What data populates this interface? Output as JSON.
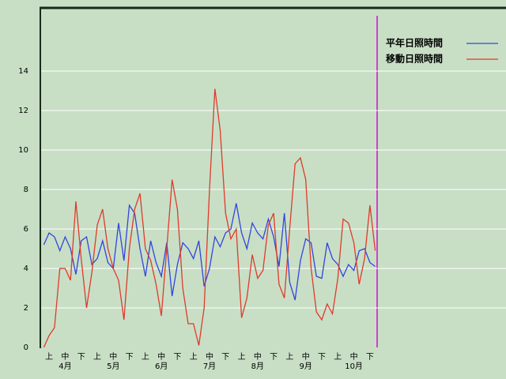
{
  "chart_data": {
    "type": "line",
    "categories": [
      null,
      "上",
      null,
      null,
      "中",
      null,
      null,
      "下",
      null,
      null,
      "上",
      null,
      null,
      "中",
      null,
      null,
      "下",
      null,
      null,
      "上",
      null,
      null,
      "中",
      null,
      null,
      "下",
      null,
      null,
      "上",
      null,
      null,
      "中",
      null,
      null,
      "下",
      null,
      null,
      "上",
      null,
      null,
      "中",
      null,
      null,
      "下",
      null,
      null,
      "上",
      null,
      null,
      "中",
      null,
      null,
      "下",
      null,
      null,
      "上",
      null,
      null,
      "中",
      null,
      null,
      "下",
      null
    ],
    "month_labels": [
      null,
      null,
      null,
      null,
      "4月",
      null,
      null,
      null,
      null,
      null,
      null,
      null,
      null,
      "5月",
      null,
      null,
      null,
      null,
      null,
      null,
      null,
      null,
      "6月",
      null,
      null,
      null,
      null,
      null,
      null,
      null,
      null,
      "7月",
      null,
      null,
      null,
      null,
      null,
      null,
      null,
      null,
      "8月",
      null,
      null,
      null,
      null,
      null,
      null,
      null,
      null,
      "9月",
      null,
      null,
      null,
      null,
      null,
      null,
      null,
      null,
      "10月",
      null,
      null,
      null,
      null
    ],
    "series": [
      {
        "name": "平年日照時間",
        "color": "#3344dd",
        "values": [
          5.2,
          5.8,
          5.6,
          4.9,
          5.6,
          5.0,
          3.7,
          5.4,
          5.6,
          4.2,
          4.5,
          5.4,
          4.3,
          4.0,
          6.3,
          4.4,
          7.2,
          6.8,
          5.0,
          3.6,
          5.4,
          4.3,
          3.6,
          5.3,
          2.6,
          4.2,
          5.3,
          5.0,
          4.5,
          5.4,
          3.1,
          4.0,
          5.6,
          5.1,
          5.8,
          6.0,
          7.3,
          5.8,
          5.0,
          6.3,
          5.8,
          5.5,
          6.5,
          5.6,
          4.1,
          6.8,
          3.3,
          2.4,
          4.4,
          5.5,
          5.3,
          3.6,
          3.5,
          5.3,
          4.5,
          4.2,
          3.6,
          4.2,
          3.9,
          4.9,
          5.0,
          4.3,
          4.1
        ]
      },
      {
        "name": "移動日照時間",
        "color": "#e03a2a",
        "values": [
          0.0,
          0.6,
          1.0,
          4.0,
          4.0,
          3.4,
          7.4,
          4.5,
          2.0,
          3.8,
          6.2,
          7.0,
          5.0,
          4.0,
          3.4,
          1.4,
          5.0,
          7.0,
          7.8,
          5.0,
          4.4,
          3.2,
          1.6,
          5.0,
          8.5,
          7.0,
          3.0,
          1.2,
          1.2,
          0.1,
          2.0,
          8.0,
          13.1,
          11.0,
          6.8,
          5.5,
          6.0,
          1.5,
          2.5,
          4.7,
          3.5,
          3.9,
          6.2,
          6.8,
          3.2,
          2.5,
          6.0,
          9.3,
          9.6,
          8.5,
          4.0,
          1.8,
          1.4,
          2.2,
          1.7,
          3.5,
          6.5,
          6.3,
          5.3,
          3.2,
          4.5,
          7.2,
          4.9
        ]
      }
    ],
    "ylim": [
      0,
      17.2
    ],
    "yticks": [
      0,
      2,
      4,
      6,
      8,
      10,
      12,
      14
    ],
    "grid": true,
    "legend": "right"
  }
}
